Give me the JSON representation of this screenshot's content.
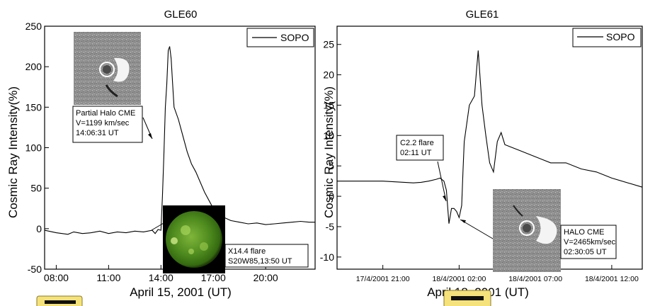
{
  "chart_data": [
    {
      "type": "line",
      "title": "GLE60",
      "xlabel": "April 15, 2001 (UT)",
      "ylabel": "Cosmic Ray Intensity(%)",
      "xlim": [
        "07:20",
        "22:50"
      ],
      "ylim": [
        -50,
        250
      ],
      "x_ticks": [
        "08:00",
        "11:00",
        "14:00",
        "17:00",
        "20:00"
      ],
      "y_ticks": [
        "-50",
        "0",
        "50",
        "100",
        "150",
        "200",
        "250"
      ],
      "legend": {
        "position": "top-right",
        "entries": [
          "SOPO"
        ]
      },
      "series": [
        {
          "name": "SOPO",
          "x": [
            "07:20",
            "08:00",
            "08:40",
            "09:00",
            "09:30",
            "10:00",
            "10:30",
            "11:00",
            "11:30",
            "12:00",
            "12:30",
            "13:00",
            "13:30",
            "13:40",
            "13:50",
            "14:00",
            "14:05",
            "14:10",
            "14:15",
            "14:20",
            "14:25",
            "14:30",
            "14:35",
            "14:40",
            "14:45",
            "15:00",
            "15:15",
            "15:30",
            "15:45",
            "16:00",
            "16:30",
            "17:00",
            "17:30",
            "18:00",
            "18:30",
            "19:00",
            "19:30",
            "20:00",
            "20:30",
            "21:00",
            "21:30",
            "22:00",
            "22:30",
            "22:50"
          ],
          "values": [
            -2,
            -5,
            -7,
            -4,
            -6,
            -5,
            -3,
            -6,
            -4,
            -5,
            -3,
            -4,
            -2,
            -6,
            -1,
            -2,
            40,
            90,
            150,
            178,
            220,
            225,
            210,
            180,
            150,
            135,
            115,
            95,
            80,
            70,
            45,
            25,
            15,
            10,
            8,
            6,
            7,
            5,
            6,
            7,
            8,
            9,
            8,
            8
          ]
        }
      ],
      "annotations": [
        {
          "lines": [
            "Partial Halo CME",
            "V=1199 km/sec",
            "14:06:31 UT"
          ]
        },
        {
          "lines": [
            "X14.4 flare",
            "S20W85,13:50 UT"
          ]
        }
      ]
    },
    {
      "type": "line",
      "title": "GLE61",
      "xlabel": "April 18, 2001 (UT)",
      "ylabel": "Cosmic Ray Intensity(%)",
      "xlim": [
        "17/4/2001 18:00",
        "18/4/2001 14:00"
      ],
      "ylim": [
        -12,
        28
      ],
      "x_ticks": [
        "17/4/2001 21:00",
        "18/4/2001 02:00",
        "18/4/2001 07:00",
        "18/4/2001 12:00"
      ],
      "y_ticks": [
        "-10",
        "-5",
        "0",
        "5",
        "10",
        "15",
        "20",
        "25"
      ],
      "legend": {
        "position": "top-right",
        "entries": [
          "SOPO"
        ]
      },
      "series": [
        {
          "name": "SOPO",
          "x": [
            "17/4/2001 18:00",
            "17/4/2001 21:00",
            "17/4/2001 23:00",
            "17/4/2001 23:30",
            "18/4/2001 00:00",
            "18/4/2001 00:30",
            "18/4/2001 00:45",
            "18/4/2001 01:00",
            "18/4/2001 01:10",
            "18/4/2001 01:20",
            "18/4/2001 01:30",
            "18/4/2001 01:40",
            "18/4/2001 01:50",
            "18/4/2001 02:00",
            "18/4/2001 02:10",
            "18/4/2001 02:15",
            "18/4/2001 02:20",
            "18/4/2001 02:40",
            "18/4/2001 03:00",
            "18/4/2001 03:15",
            "18/4/2001 03:30",
            "18/4/2001 03:45",
            "18/4/2001 04:00",
            "18/4/2001 04:15",
            "18/4/2001 04:30",
            "18/4/2001 04:45",
            "18/4/2001 05:00",
            "18/4/2001 05:30",
            "18/4/2001 06:00",
            "18/4/2001 07:00",
            "18/4/2001 08:00",
            "18/4/2001 09:00",
            "18/4/2001 10:00",
            "18/4/2001 11:00",
            "18/4/2001 12:00",
            "18/4/2001 14:00"
          ],
          "values": [
            2.5,
            2.5,
            2.2,
            2.3,
            2.5,
            2.8,
            3.0,
            2.5,
            1.0,
            -4.5,
            -2.0,
            -2.0,
            -2.5,
            -3.5,
            -1.5,
            4.0,
            9.0,
            15.0,
            16.5,
            24.0,
            15.0,
            10.0,
            5.5,
            4.0,
            9.0,
            10.5,
            8.5,
            8.0,
            7.5,
            6.5,
            5.5,
            5.5,
            4.5,
            4.0,
            3.0,
            1.5
          ]
        }
      ],
      "annotations": [
        {
          "lines": [
            "C2.2 flare",
            "02:11 UT"
          ]
        },
        {
          "lines": [
            "HALO CME",
            "V=2465km/sec",
            "02:30:05 UT"
          ]
        }
      ]
    }
  ]
}
